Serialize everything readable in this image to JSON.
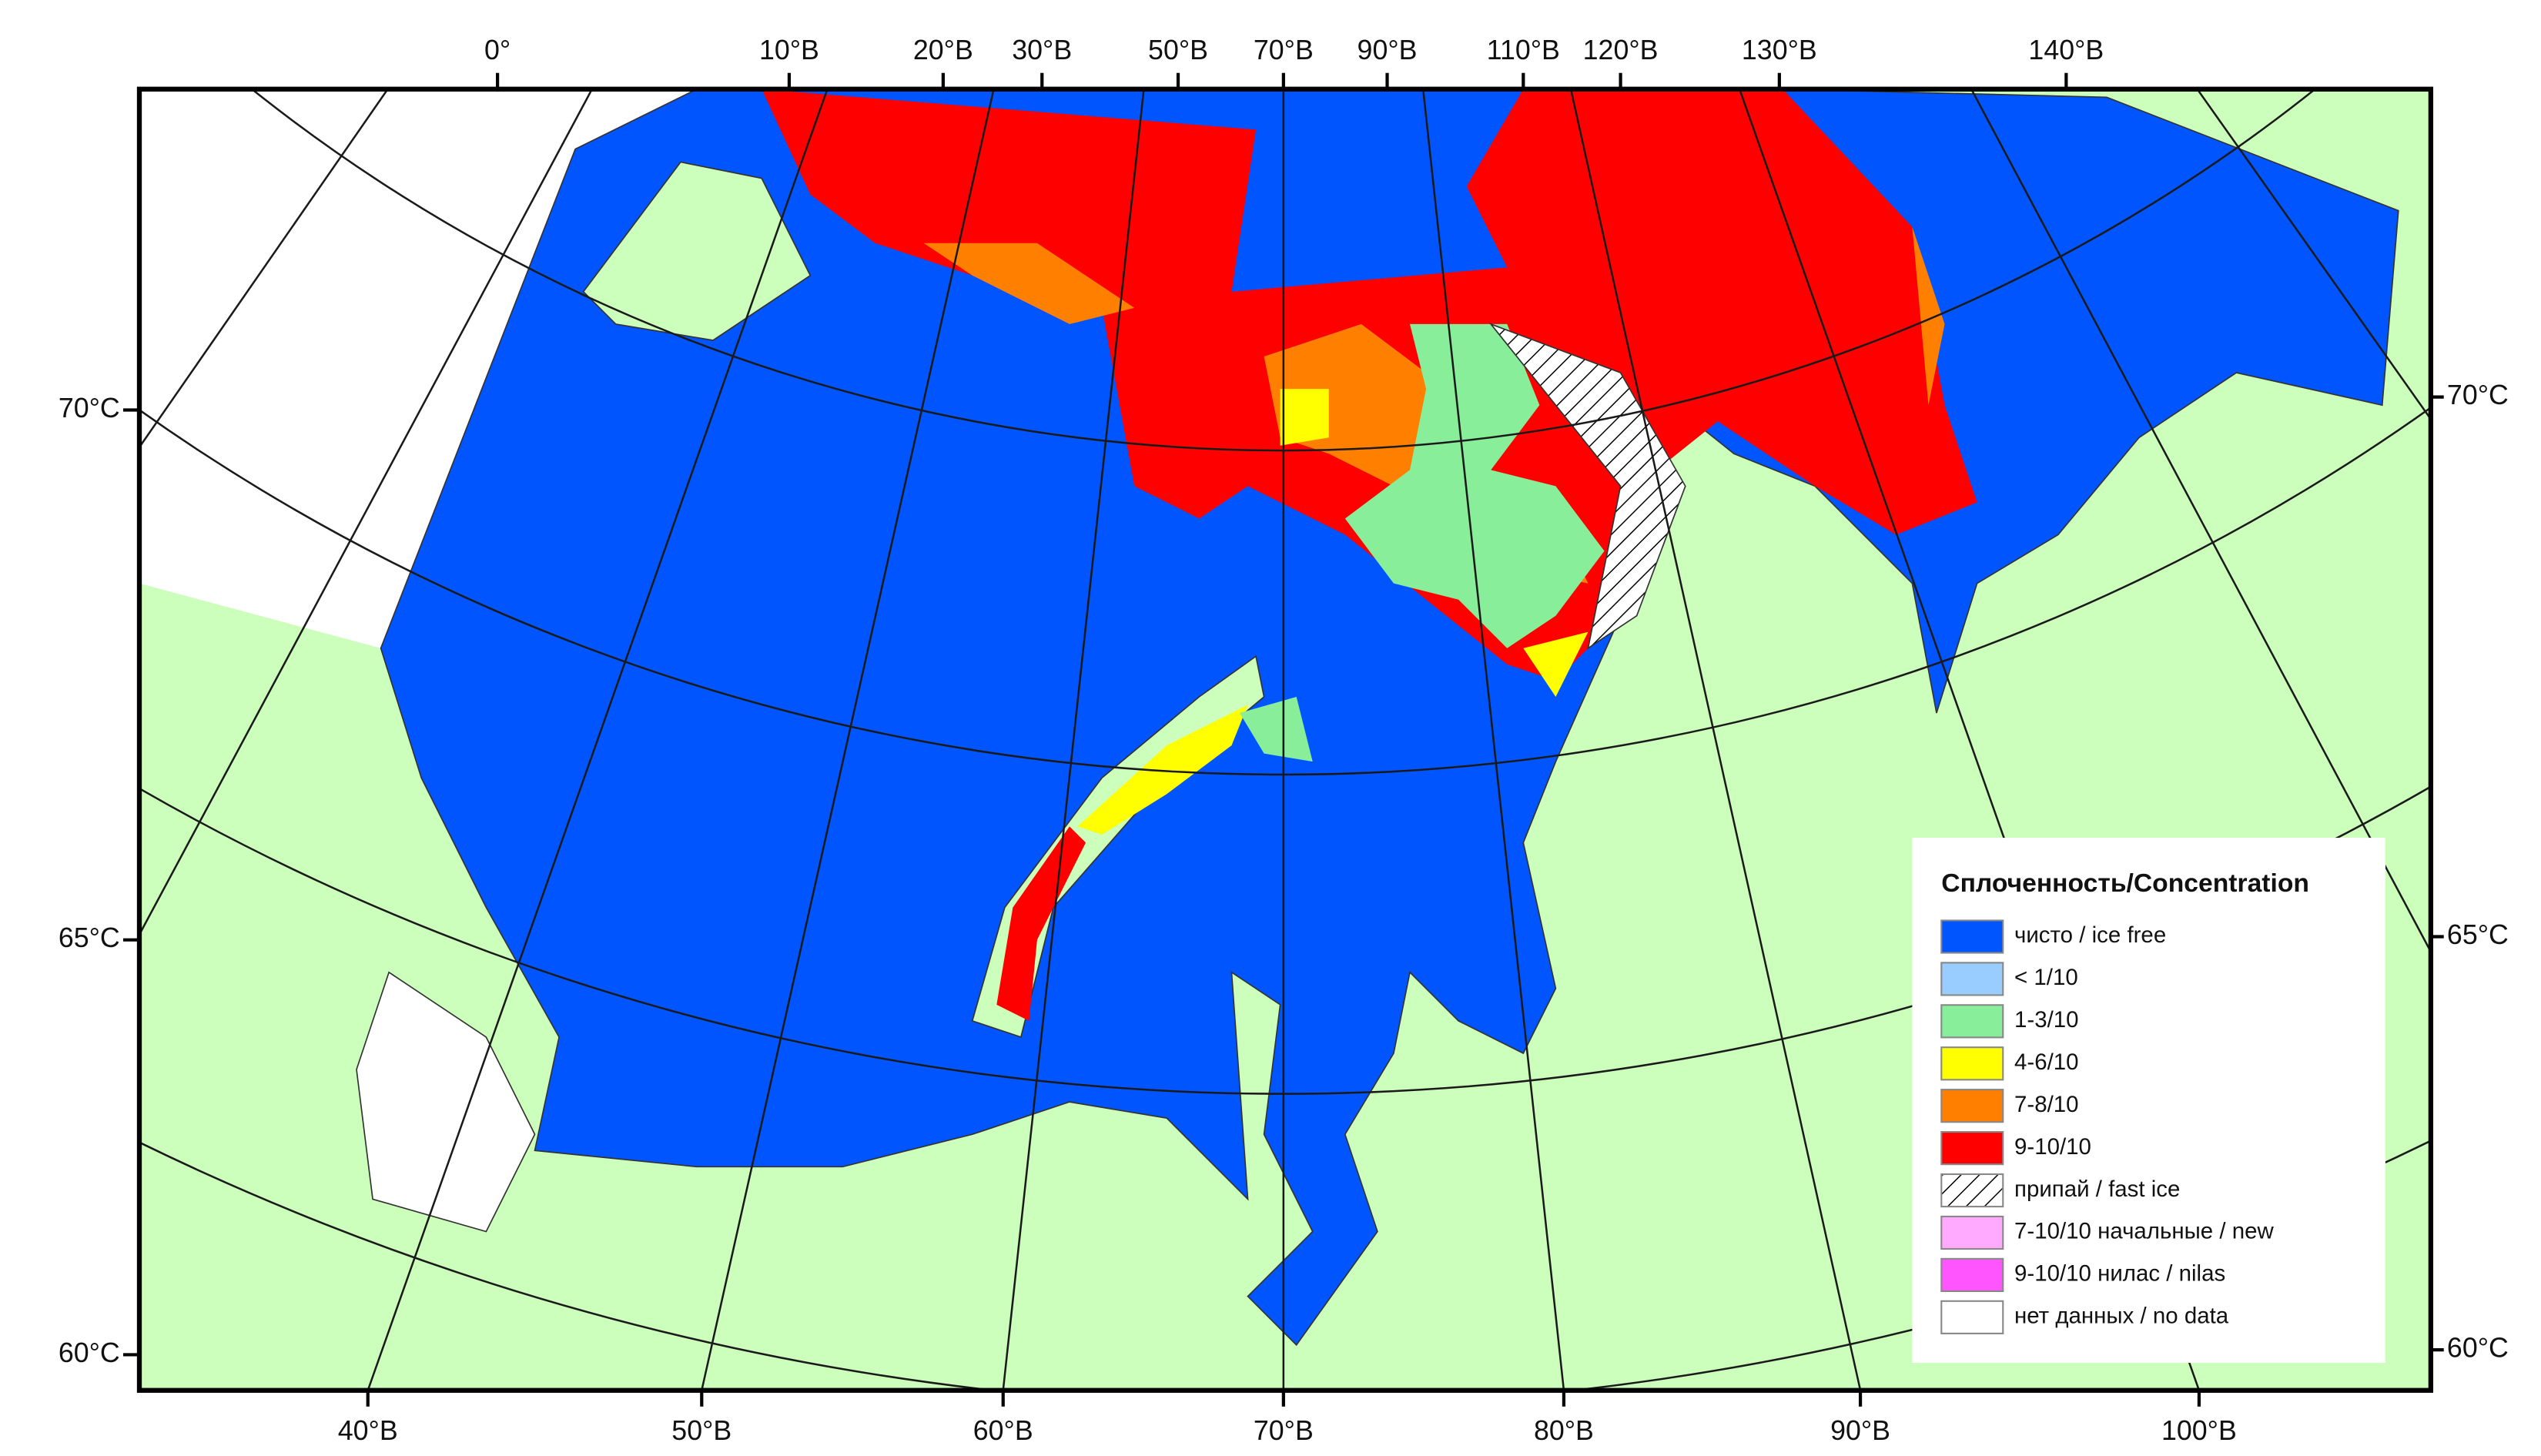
{
  "map": {
    "top_labels": [
      "0°",
      "10°В",
      "20°В",
      "30°В",
      "50°В",
      "70°В",
      "90°В",
      "110°В",
      "120°В",
      "130°В",
      "140°В"
    ],
    "bottom_labels": [
      "40°В",
      "50°В",
      "60°В",
      "70°В",
      "80°В",
      "90°В",
      "100°В"
    ],
    "left_labels": [
      "70°С",
      "65°С",
      "60°С"
    ],
    "right_labels": [
      "70°С",
      "65°С",
      "60°С"
    ],
    "legend": {
      "title": "Сплоченность/Concentration",
      "items": [
        {
          "label": "чисто / ice free",
          "color": "#0055ff"
        },
        {
          "label": "< 1/10",
          "color": "#99ccff"
        },
        {
          "label": "1-3/10",
          "color": "#88ee99"
        },
        {
          "label": "4-6/10",
          "color": "#ffff00"
        },
        {
          "label": "7-8/10",
          "color": "#ff7f00"
        },
        {
          "label": "9-10/10",
          "color": "#ff0000"
        },
        {
          "label": "припай / fast ice",
          "color": "#ffffff",
          "hatched": true
        },
        {
          "label": "7-10/10 начальные / new",
          "color": "#ffaaff"
        },
        {
          "label": "9-10/10 нилас / nilas",
          "color": "#ff55ff"
        },
        {
          "label": "нет данных / no data",
          "color": "#ffffff"
        }
      ]
    }
  }
}
